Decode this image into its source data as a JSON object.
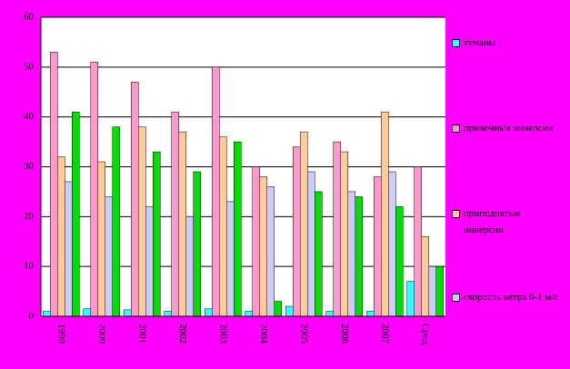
{
  "chart_data": {
    "type": "bar",
    "categories": [
      "1999",
      "2000",
      "2001",
      "2002",
      "2003",
      "2004",
      "2005",
      "2006",
      "2007",
      "Сред"
    ],
    "series": [
      {
        "name": "туманы",
        "color": "#33ffff",
        "values": [
          1,
          1.5,
          1.3,
          1,
          1.5,
          1,
          2,
          1,
          1,
          7
        ]
      },
      {
        "name": "приземные инверсии",
        "color": "#ff99cc",
        "values": [
          53,
          51,
          47,
          41,
          50,
          30,
          34,
          35,
          28,
          30
        ]
      },
      {
        "name": "приподнятые инверсии",
        "color": "#ffcc99",
        "values": [
          32,
          31,
          38,
          37,
          36,
          28,
          37,
          33,
          41,
          16
        ]
      },
      {
        "name": "скорость ветра 0-1 м/с",
        "color": "#ccccff",
        "values": [
          27,
          24,
          22,
          20,
          23,
          26,
          29,
          25,
          29,
          10
        ]
      },
      {
        "color": "#00dd00",
        "values": [
          41,
          38,
          33,
          29,
          35,
          3,
          25,
          24,
          22,
          10
        ]
      }
    ],
    "ylim": [
      0,
      60
    ],
    "yticks": [
      0,
      10,
      20,
      30,
      40,
      50,
      60
    ],
    "grid": true
  }
}
